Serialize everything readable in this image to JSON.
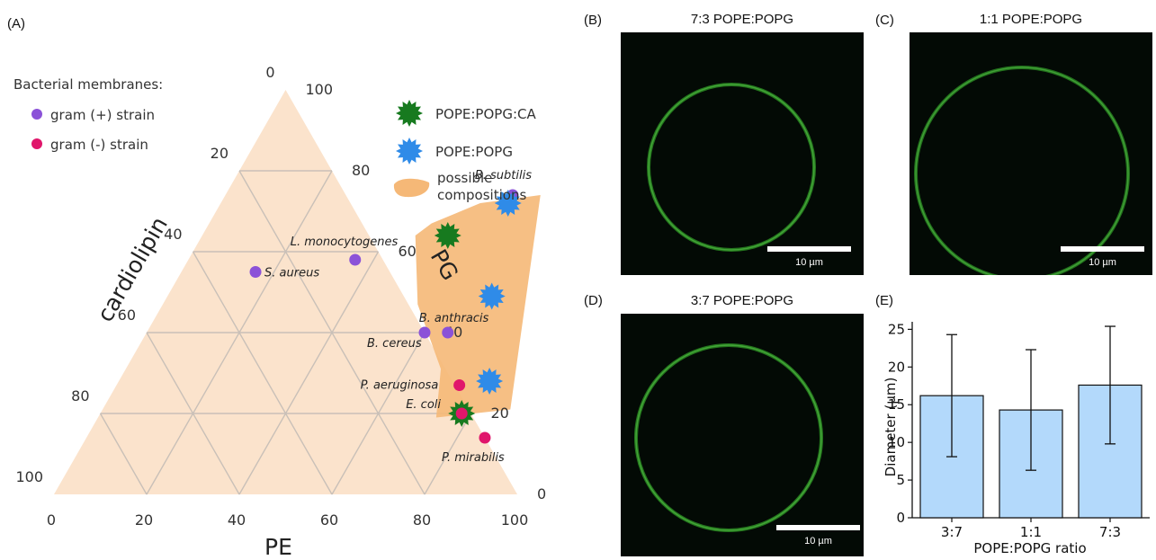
{
  "panel_labels": {
    "a": "(A)",
    "b": "(B)",
    "c": "(C)",
    "d": "(D)",
    "e": "(E)"
  },
  "ternary": {
    "axis_titles": {
      "cardiolipin": "cardiolipin",
      "pg": "PG",
      "pe": "PE"
    },
    "pe_ticks": [
      "0",
      "20",
      "40",
      "60",
      "80",
      "100"
    ],
    "pg_ticks": [
      "0",
      "20",
      "40",
      "60",
      "80",
      "100"
    ],
    "cl_ticks": [
      "0",
      "20",
      "40",
      "60",
      "80",
      "100"
    ],
    "legend": {
      "heading": "Bacterial membranes:",
      "gram_pos": "gram (+) strain",
      "gram_neg": "gram (-) strain",
      "cl_mix": "POPE:POPG:CA",
      "pg_mix": "POPE:POPG",
      "possible_1": "possible",
      "possible_2": "compositions"
    },
    "colors": {
      "triangle_fill": "#fbe3cc",
      "region": "#f5b877",
      "gram_pos": "#8b52d8",
      "gram_neg": "#e0166b",
      "cl_star": "#177a1f",
      "pg_star": "#2f8be8"
    },
    "points": [
      {
        "label": "B. subtilis",
        "pe": 62,
        "pg": 74,
        "type": "gram_pos"
      },
      {
        "label": "L. monocytogenes",
        "pe": 36,
        "pg": 58,
        "type": "gram_pos"
      },
      {
        "label": "S. aureus",
        "pe": 16,
        "pg": 55,
        "type": "gram_pos"
      },
      {
        "label": "B. anthracis",
        "pe": 65,
        "pg": 40,
        "type": "gram_pos"
      },
      {
        "label": "B. cereus",
        "pe": 60,
        "pg": 40,
        "type": "gram_pos"
      },
      {
        "label": "P. aeruginosa",
        "pe": 74,
        "pg": 27,
        "type": "gram_neg"
      },
      {
        "label": "E. coli",
        "pe": 78,
        "pg": 20,
        "type": "gram_neg"
      },
      {
        "label": "P. mirabilis",
        "pe": 86,
        "pg": 14,
        "type": "gram_neg"
      }
    ],
    "stars": [
      {
        "pe": 62,
        "pg": 72,
        "type": "pg_star"
      },
      {
        "pe": 53,
        "pg": 64,
        "type": "cl_star"
      },
      {
        "pe": 70,
        "pg": 49,
        "type": "pg_star"
      },
      {
        "pe": 80,
        "pg": 28,
        "type": "pg_star"
      },
      {
        "pe": 78,
        "pg": 20,
        "type": "cl_star"
      }
    ],
    "region": [
      [
        56,
        72
      ],
      [
        68,
        74
      ],
      [
        88,
        21
      ],
      [
        73,
        19
      ],
      [
        68,
        31
      ],
      [
        55,
        47
      ],
      [
        46,
        64
      ],
      [
        48,
        67
      ]
    ]
  },
  "micrographs": [
    {
      "title": "7:3 POPE:POPG",
      "scale": "10 µm"
    },
    {
      "title": "1:1 POPE:POPG",
      "scale": "10 µm"
    },
    {
      "title": "3:7 POPE:POPG",
      "scale": "10 µm"
    }
  ],
  "chart_data": {
    "type": "bar",
    "categories": [
      "3:7",
      "1:1",
      "7:3"
    ],
    "values": [
      16.2,
      14.3,
      17.6
    ],
    "errors": [
      8.1,
      8.0,
      7.8
    ],
    "xlabel": "POPE:POPG ratio",
    "ylabel": "Diameter (µm)",
    "ylim": [
      0,
      26
    ],
    "yticks": [
      0,
      5,
      10,
      15,
      20,
      25
    ],
    "bar_color": "#b3d9fb",
    "grid": false
  }
}
